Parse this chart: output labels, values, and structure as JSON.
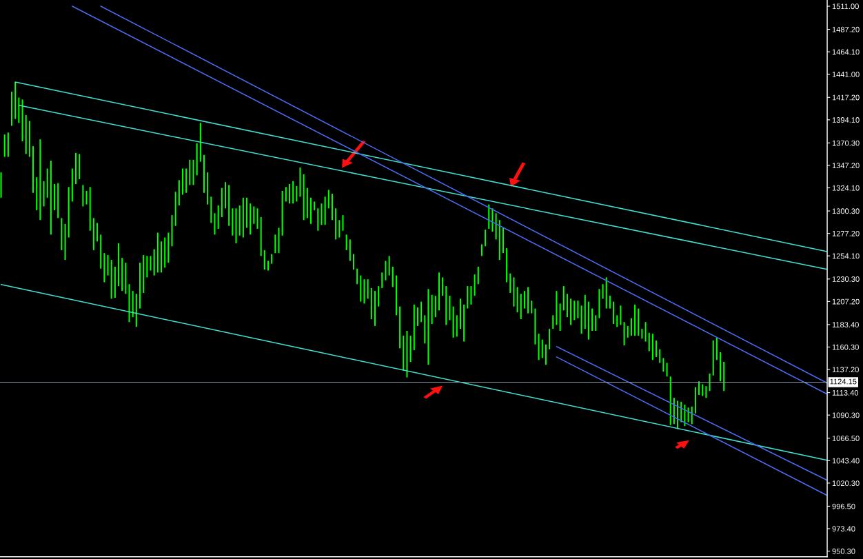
{
  "chart_data": {
    "type": "bar",
    "categories": [
      null,
      null,
      null,
      null,
      null,
      null,
      null,
      null,
      null,
      null,
      null,
      null,
      null,
      null,
      null,
      null,
      null,
      null,
      null,
      null,
      null,
      null,
      null,
      null,
      null,
      null,
      null,
      null,
      null,
      null,
      null,
      null,
      null,
      null,
      null,
      null,
      null,
      null,
      null,
      null,
      null,
      null,
      null,
      null,
      null,
      null,
      null,
      null,
      null,
      null,
      null,
      null,
      null,
      null,
      null,
      null,
      null,
      null,
      null,
      null,
      null,
      null,
      null,
      null,
      null,
      null,
      null,
      null,
      null,
      null,
      null,
      null,
      null,
      null,
      null,
      null,
      null,
      null,
      null,
      null,
      null,
      null,
      null,
      null,
      null,
      null,
      null,
      null,
      null,
      null,
      null,
      null,
      null,
      null,
      null,
      null,
      null,
      null,
      null,
      null,
      null,
      null,
      null,
      null,
      null,
      null,
      null,
      null,
      null,
      null,
      null,
      null,
      null,
      null,
      null,
      null,
      null,
      null,
      null,
      null,
      null,
      null,
      null,
      null,
      null,
      null,
      null,
      null,
      null,
      null,
      null,
      null,
      null,
      null,
      null,
      null,
      null,
      null,
      null,
      null,
      null,
      null,
      null,
      null,
      null,
      null,
      null,
      null,
      null,
      null,
      null,
      null,
      null,
      null,
      null,
      null,
      null,
      null,
      null,
      null,
      null,
      null,
      null,
      null,
      null,
      null,
      null,
      null,
      null,
      null,
      null,
      null,
      null,
      null,
      null,
      null,
      null,
      null,
      null,
      null,
      null,
      null,
      null,
      null,
      null,
      null,
      null,
      null,
      null,
      null,
      null,
      null,
      null,
      null,
      null,
      null,
      null,
      null,
      null,
      null,
      null,
      null,
      null,
      null,
      null,
      null,
      null,
      null,
      null,
      null,
      null,
      null,
      null,
      null,
      null,
      null,
      null,
      null,
      null,
      null,
      null,
      null,
      null,
      null,
      null,
      null,
      null,
      null,
      null,
      null,
      null,
      null,
      null
    ],
    "series": [
      {
        "color": "#00ff00",
        "base": [
          1314,
          1356,
          1356,
          1388,
          1395,
          1391,
          1372,
          1359,
          1356,
          1319,
          1301,
          1291,
          1305,
          1314,
          1276,
          1301,
          1293,
          1260,
          1250,
          1273,
          1310,
          1328,
          1333,
          1305,
          1307,
          1280,
          1260,
          1269,
          1241,
          1227,
          1234,
          1210,
          1211,
          1223,
          1218,
          1215,
          1186,
          1191,
          1181,
          1200,
          1216,
          1232,
          1239,
          1234,
          1237,
          1237,
          1242,
          1247,
          1264,
          1285,
          1306,
          1317,
          1319,
          1327,
          1327,
          1337,
          1351,
          1319,
          1307,
          1288,
          1276,
          1282,
          1294,
          1303,
          1285,
          1275,
          1267,
          1275,
          1273,
          1283,
          1276,
          1287,
          1282,
          1254,
          1240,
          1239,
          1246,
          1257,
          1257,
          1275,
          1310,
          1308,
          1308,
          1310,
          1315,
          1291,
          1293,
          1287,
          1301,
          1280,
          1286,
          1286,
          1303,
          1291,
          1271,
          1273,
          1280,
          1260,
          1249,
          1240,
          1225,
          1207,
          1205,
          1210,
          1189,
          1182,
          1202,
          1221,
          1229,
          1234,
          1222,
          1193,
          1159,
          1136,
          1129,
          1145,
          1157,
          1182,
          1186,
          1164,
          1142,
          1184,
          1191,
          1198,
          1213,
          1183,
          1188,
          1170,
          1171,
          1179,
          1166,
          1200,
          1204,
          1213,
          1225,
          1254,
          1264,
          1282,
          1279,
          1271,
          1250,
          1257,
          1227,
          1216,
          1202,
          1196,
          1189,
          1200,
          1195,
          1195,
          1163,
          1147,
          1149,
          1142,
          1158,
          1179,
          1183,
          1177,
          1198,
          1191,
          1183,
          1188,
          1190,
          1174,
          1179,
          1168,
          1177,
          1177,
          1190,
          1210,
          1200,
          1200,
          1184,
          1181,
          1183,
          1162,
          1170,
          1172,
          1172,
          1172,
          1169,
          1166,
          1156,
          1147,
          1150,
          1144,
          1135,
          1130,
          1080,
          1081,
          1076,
          1083,
          1079,
          1083,
          1081,
          1092,
          1111,
          1110,
          1108,
          1115,
          1131,
          1147,
          1125,
          1115,
          null,
          null,
          null,
          null,
          null,
          null,
          null,
          null,
          null,
          null,
          null,
          null,
          null,
          null,
          null,
          null,
          null,
          null,
          null,
          null,
          null,
          null,
          null,
          null,
          null,
          null,
          null,
          null,
          null
        ],
        "values": [
          26,
          23,
          25,
          35,
          38,
          26,
          43,
          40,
          37,
          48,
          34,
          83,
          26,
          30,
          76,
          27,
          36,
          33,
          37,
          52,
          34,
          32,
          26,
          22,
          14,
          45,
          33,
          19,
          35,
          30,
          21,
          40,
          32,
          44,
          34,
          32,
          39,
          27,
          34,
          47,
          39,
          22,
          15,
          27,
          41,
          32,
          31,
          31,
          32,
          35,
          26,
          27,
          25,
          26,
          26,
          33,
          40,
          39,
          33,
          27,
          22,
          24,
          30,
          27,
          42,
          28,
          36,
          31,
          41,
          31,
          32,
          18,
          21,
          40,
          20,
          10,
          10,
          19,
          26,
          46,
          15,
          20,
          23,
          16,
          30,
          47,
          31,
          27,
          9,
          23,
          22,
          29,
          19,
          27,
          32,
          18,
          16,
          16,
          22,
          16,
          16,
          27,
          25,
          20,
          32,
          36,
          21,
          16,
          20,
          20,
          21,
          41,
          43,
          36,
          48,
          27,
          47,
          19,
          21,
          29,
          78,
          30,
          22,
          39,
          19,
          40,
          25,
          32,
          22,
          31,
          38,
          23,
          19,
          22,
          18,
          12,
          17,
          25,
          24,
          27,
          41,
          26,
          35,
          20,
          30,
          26,
          26,
          18,
          27,
          13,
          37,
          27,
          19,
          21,
          21,
          14,
          35,
          28,
          25,
          24,
          27,
          20,
          18,
          29,
          35,
          39,
          23,
          16,
          30,
          15,
          32,
          13,
          23,
          12,
          20,
          24,
          12,
          18,
          32,
          28,
          10,
          20,
          19,
          27,
          17,
          14,
          14,
          14,
          50,
          27,
          29,
          21,
          22,
          15,
          18,
          27,
          14,
          12,
          12,
          18,
          36,
          23,
          30,
          30,
          null,
          null,
          null,
          null,
          null,
          null,
          null,
          null,
          null,
          null,
          null,
          null,
          null,
          null,
          null,
          null,
          null,
          null,
          null,
          null,
          null,
          null,
          null,
          null,
          null,
          null,
          null,
          null,
          null
        ]
      },
      {
        "type": "line",
        "color": "#40e0d0",
        "values": [
          null,
          null,
          null,
          null,
          1433.0,
          null,
          null,
          null,
          null,
          null,
          null,
          null,
          null,
          null,
          null,
          null,
          null,
          null,
          null,
          null,
          null,
          null,
          null,
          null,
          null,
          null,
          null,
          null,
          null,
          null,
          null,
          null,
          null,
          null,
          null,
          null,
          null,
          null,
          null,
          null,
          null,
          null,
          null,
          null,
          null,
          null,
          null,
          null,
          null,
          null,
          null,
          null,
          null,
          null,
          null,
          null,
          null,
          null,
          null,
          null,
          null,
          null,
          null,
          null,
          null,
          null,
          null,
          null,
          null,
          null,
          null,
          null,
          null,
          null,
          null,
          null,
          null,
          null,
          null,
          null,
          null,
          null,
          null,
          null,
          null,
          null,
          null,
          null,
          null,
          null,
          null,
          null,
          null,
          null,
          null,
          null,
          null,
          null,
          null,
          null,
          null,
          null,
          null,
          null,
          null,
          null,
          null,
          null,
          null,
          null,
          null,
          null,
          null,
          null,
          null,
          null,
          null,
          null,
          null,
          null,
          null,
          null,
          null,
          null,
          null,
          null,
          null,
          null,
          null,
          null,
          null,
          null,
          null,
          null,
          null,
          null,
          null,
          null,
          null,
          null,
          null,
          null,
          null,
          null,
          null,
          null,
          null,
          null,
          null,
          null,
          null,
          null,
          null,
          null,
          null,
          null,
          null,
          null,
          null,
          null,
          null,
          null,
          null,
          null,
          null,
          null,
          null,
          null,
          null,
          null,
          null,
          null,
          null,
          null,
          null,
          null,
          null,
          null,
          null,
          null,
          null,
          null,
          null,
          null,
          null,
          null,
          null,
          null,
          null,
          null,
          null,
          null,
          null,
          null,
          null,
          null,
          null,
          null,
          null,
          null,
          null,
          null,
          null,
          null,
          null,
          null,
          null,
          null,
          null,
          null,
          null,
          null,
          null,
          null,
          null,
          null,
          null,
          null,
          null,
          null,
          null,
          null,
          null,
          null,
          null,
          null,
          null,
          null,
          null,
          null,
          null,
          null,
          1258.6
        ]
      },
      {
        "type": "line",
        "color": "#40e0d0",
        "values": [
          null,
          null,
          null,
          null,
          null,
          1409.0,
          null,
          null,
          null,
          null,
          null,
          null,
          null,
          null,
          null,
          null,
          null,
          null,
          null,
          null,
          null,
          null,
          null,
          null,
          null,
          null,
          null,
          null,
          null,
          null,
          null,
          null,
          null,
          null,
          null,
          null,
          null,
          null,
          null,
          null,
          null,
          null,
          null,
          null,
          null,
          null,
          null,
          null,
          null,
          null,
          null,
          null,
          null,
          null,
          null,
          null,
          null,
          null,
          null,
          null,
          null,
          null,
          null,
          null,
          null,
          null,
          null,
          null,
          null,
          null,
          null,
          null,
          null,
          null,
          null,
          null,
          null,
          null,
          null,
          null,
          null,
          null,
          null,
          null,
          null,
          null,
          null,
          null,
          null,
          null,
          null,
          null,
          null,
          null,
          null,
          null,
          null,
          null,
          null,
          null,
          null,
          null,
          null,
          null,
          null,
          null,
          null,
          null,
          null,
          null,
          null,
          null,
          null,
          null,
          null,
          null,
          null,
          null,
          null,
          null,
          null,
          null,
          null,
          null,
          null,
          null,
          null,
          null,
          null,
          null,
          null,
          null,
          null,
          null,
          null,
          null,
          null,
          null,
          null,
          null,
          null,
          null,
          null,
          null,
          null,
          null,
          null,
          null,
          null,
          null,
          null,
          null,
          null,
          null,
          null,
          null,
          null,
          null,
          null,
          null,
          null,
          null,
          null,
          null,
          null,
          null,
          null,
          null,
          null,
          null,
          null,
          null,
          null,
          null,
          null,
          null,
          null,
          null,
          null,
          null,
          null,
          null,
          null,
          null,
          null,
          null,
          null,
          null,
          null,
          null,
          null,
          null,
          null,
          null,
          null,
          null,
          null,
          null,
          null,
          null,
          null,
          null,
          null,
          null,
          null,
          null,
          null,
          null,
          null,
          null,
          null,
          null,
          null,
          null,
          null,
          null,
          null,
          null,
          null,
          null,
          null,
          null,
          null,
          null,
          null,
          null,
          null,
          null,
          null,
          null,
          null,
          null,
          1240.2
        ]
      },
      {
        "type": "line",
        "color": "#40e0d0",
        "values": [
          1224.6,
          null,
          null,
          null,
          null,
          null,
          null,
          null,
          null,
          null,
          null,
          null,
          null,
          null,
          null,
          null,
          null,
          null,
          null,
          null,
          null,
          null,
          null,
          null,
          null,
          null,
          null,
          null,
          null,
          null,
          null,
          null,
          null,
          null,
          null,
          null,
          null,
          null,
          null,
          null,
          null,
          null,
          null,
          null,
          null,
          null,
          null,
          null,
          null,
          null,
          null,
          null,
          null,
          null,
          null,
          null,
          null,
          null,
          null,
          null,
          null,
          null,
          null,
          null,
          null,
          null,
          null,
          null,
          null,
          null,
          null,
          null,
          null,
          null,
          null,
          null,
          null,
          null,
          null,
          null,
          null,
          null,
          null,
          null,
          null,
          null,
          null,
          null,
          null,
          null,
          null,
          null,
          null,
          null,
          null,
          null,
          null,
          null,
          null,
          null,
          null,
          null,
          null,
          null,
          null,
          null,
          null,
          null,
          null,
          null,
          null,
          null,
          null,
          null,
          null,
          null,
          null,
          null,
          null,
          null,
          null,
          null,
          null,
          null,
          null,
          null,
          null,
          null,
          null,
          null,
          null,
          null,
          null,
          null,
          null,
          null,
          null,
          null,
          null,
          null,
          null,
          null,
          null,
          null,
          null,
          null,
          null,
          null,
          null,
          null,
          null,
          null,
          null,
          null,
          null,
          null,
          null,
          null,
          null,
          null,
          null,
          null,
          null,
          null,
          null,
          null,
          null,
          null,
          null,
          null,
          null,
          null,
          null,
          null,
          null,
          null,
          null,
          null,
          null,
          null,
          null,
          null,
          null,
          null,
          null,
          null,
          null,
          null,
          null,
          null,
          null,
          null,
          null,
          null,
          null,
          null,
          null,
          null,
          null,
          null,
          null,
          null,
          null,
          null,
          null,
          null,
          null,
          null,
          null,
          null,
          null,
          null,
          null,
          null,
          null,
          null,
          null,
          null,
          null,
          null,
          null,
          null,
          null,
          null,
          null,
          null,
          null,
          null,
          null,
          null,
          null,
          null,
          1043.8
        ]
      },
      {
        "type": "line",
        "color": "#4a6cf0",
        "values": [
          null,
          null,
          null,
          null,
          null,
          null,
          null,
          null,
          null,
          null,
          null,
          null,
          null,
          null,
          null,
          null,
          null,
          null,
          null,
          null,
          1511.0,
          null,
          null,
          null,
          null,
          null,
          null,
          null,
          null,
          null,
          null,
          null,
          null,
          null,
          null,
          null,
          null,
          null,
          null,
          null,
          null,
          null,
          null,
          null,
          null,
          null,
          null,
          null,
          null,
          null,
          null,
          null,
          null,
          null,
          null,
          null,
          null,
          null,
          null,
          null,
          null,
          null,
          null,
          null,
          null,
          null,
          null,
          null,
          null,
          null,
          null,
          null,
          null,
          null,
          null,
          null,
          null,
          null,
          null,
          null,
          null,
          null,
          null,
          null,
          null,
          null,
          null,
          null,
          null,
          null,
          null,
          null,
          null,
          null,
          null,
          null,
          null,
          null,
          null,
          null,
          null,
          null,
          null,
          null,
          null,
          null,
          null,
          null,
          null,
          null,
          null,
          null,
          null,
          null,
          null,
          null,
          null,
          null,
          null,
          null,
          null,
          null,
          null,
          null,
          null,
          null,
          null,
          null,
          null,
          null,
          null,
          null,
          null,
          null,
          null,
          null,
          null,
          null,
          null,
          null,
          null,
          null,
          null,
          null,
          null,
          null,
          null,
          null,
          null,
          null,
          null,
          null,
          null,
          null,
          null,
          null,
          null,
          null,
          null,
          null,
          null,
          null,
          null,
          null,
          null,
          null,
          null,
          null,
          null,
          null,
          null,
          null,
          null,
          null,
          null,
          null,
          null,
          null,
          null,
          null,
          null,
          null,
          null,
          null,
          null,
          null,
          null,
          null,
          null,
          null,
          null,
          null,
          null,
          null,
          null,
          null,
          null,
          null,
          null,
          null,
          null,
          null,
          null,
          null,
          null,
          null,
          null,
          null,
          null,
          null,
          null,
          null,
          null,
          null,
          null,
          null,
          null,
          null,
          null,
          null,
          null,
          null,
          null,
          null,
          null,
          null,
          null,
          null,
          null,
          null,
          null,
          null,
          1111.9
        ]
      },
      {
        "type": "line",
        "color": "#4a6cf0",
        "values": [
          null,
          null,
          null,
          null,
          null,
          null,
          null,
          null,
          null,
          null,
          null,
          null,
          null,
          null,
          null,
          null,
          null,
          null,
          null,
          null,
          null,
          null,
          null,
          null,
          null,
          null,
          null,
          null,
          1511.0,
          null,
          null,
          null,
          null,
          null,
          null,
          null,
          null,
          null,
          null,
          null,
          null,
          null,
          null,
          null,
          null,
          null,
          null,
          null,
          null,
          null,
          null,
          null,
          null,
          null,
          null,
          null,
          null,
          null,
          null,
          null,
          null,
          null,
          null,
          null,
          null,
          null,
          null,
          null,
          null,
          null,
          null,
          null,
          null,
          null,
          null,
          null,
          null,
          null,
          null,
          null,
          null,
          null,
          null,
          null,
          null,
          null,
          null,
          null,
          null,
          null,
          null,
          null,
          null,
          null,
          null,
          null,
          null,
          null,
          null,
          null,
          null,
          null,
          null,
          null,
          null,
          null,
          null,
          null,
          null,
          null,
          null,
          null,
          null,
          null,
          null,
          null,
          null,
          null,
          null,
          null,
          null,
          null,
          null,
          null,
          null,
          null,
          null,
          null,
          null,
          null,
          null,
          null,
          null,
          null,
          null,
          null,
          null,
          null,
          null,
          null,
          null,
          null,
          null,
          null,
          null,
          null,
          null,
          null,
          null,
          null,
          null,
          null,
          null,
          null,
          null,
          null,
          null,
          null,
          null,
          null,
          null,
          null,
          null,
          null,
          null,
          null,
          null,
          null,
          null,
          null,
          null,
          null,
          null,
          null,
          null,
          null,
          null,
          null,
          null,
          null,
          null,
          null,
          null,
          null,
          null,
          null,
          null,
          null,
          null,
          null,
          null,
          null,
          null,
          null,
          null,
          null,
          null,
          null,
          null,
          null,
          null,
          null,
          null,
          null,
          null,
          null,
          null,
          null,
          null,
          null,
          null,
          null,
          null,
          null,
          null,
          null,
          null,
          null,
          null,
          null,
          null,
          null,
          null,
          null,
          null,
          null,
          null,
          null,
          null,
          null,
          null,
          null,
          1123.2
        ]
      },
      {
        "type": "line",
        "color": "#4a6cf0",
        "values": [
          null,
          null,
          null,
          null,
          null,
          null,
          null,
          null,
          null,
          null,
          null,
          null,
          null,
          null,
          null,
          null,
          null,
          null,
          null,
          null,
          null,
          null,
          null,
          null,
          null,
          null,
          null,
          null,
          null,
          null,
          null,
          null,
          null,
          null,
          null,
          null,
          null,
          null,
          null,
          null,
          null,
          null,
          null,
          null,
          null,
          null,
          null,
          null,
          null,
          null,
          null,
          null,
          null,
          null,
          null,
          null,
          null,
          null,
          null,
          null,
          null,
          null,
          null,
          null,
          null,
          null,
          null,
          null,
          null,
          null,
          null,
          null,
          null,
          null,
          null,
          null,
          null,
          null,
          null,
          null,
          null,
          null,
          null,
          null,
          null,
          null,
          null,
          null,
          null,
          null,
          null,
          null,
          null,
          null,
          null,
          null,
          null,
          null,
          null,
          null,
          null,
          null,
          null,
          null,
          null,
          null,
          null,
          null,
          null,
          null,
          null,
          null,
          null,
          null,
          null,
          null,
          null,
          null,
          null,
          null,
          null,
          null,
          null,
          null,
          null,
          null,
          null,
          null,
          null,
          null,
          null,
          null,
          null,
          null,
          null,
          null,
          null,
          null,
          null,
          null,
          null,
          null,
          null,
          null,
          null,
          null,
          null,
          null,
          null,
          null,
          null,
          null,
          null,
          null,
          null,
          null,
          1160.8,
          null,
          null,
          null,
          null,
          null,
          null,
          null,
          null,
          null,
          null,
          null,
          null,
          null,
          null,
          null,
          null,
          null,
          null,
          null,
          null,
          null,
          null,
          null,
          null,
          null,
          null,
          null,
          null,
          null,
          null,
          null,
          null,
          null,
          null,
          null,
          null,
          null,
          null,
          null,
          null,
          null,
          null,
          null,
          null,
          null,
          null,
          null,
          null,
          null,
          null,
          null,
          null,
          null,
          null,
          null,
          null,
          null,
          null,
          null,
          null,
          null,
          null,
          null,
          null,
          null,
          null,
          null,
          null,
          null,
          null,
          null,
          null,
          null,
          null,
          null,
          1023.2
        ]
      },
      {
        "type": "line",
        "color": "#4a6cf0",
        "values": [
          null,
          null,
          null,
          null,
          null,
          null,
          null,
          null,
          null,
          null,
          null,
          null,
          null,
          null,
          null,
          null,
          null,
          null,
          null,
          null,
          null,
          null,
          null,
          null,
          null,
          null,
          null,
          null,
          null,
          null,
          null,
          null,
          null,
          null,
          null,
          null,
          null,
          null,
          null,
          null,
          null,
          null,
          null,
          null,
          null,
          null,
          null,
          null,
          null,
          null,
          null,
          null,
          null,
          null,
          null,
          null,
          null,
          null,
          null,
          null,
          null,
          null,
          null,
          null,
          null,
          null,
          null,
          null,
          null,
          null,
          null,
          null,
          null,
          null,
          null,
          null,
          null,
          null,
          null,
          null,
          null,
          null,
          null,
          null,
          null,
          null,
          null,
          null,
          null,
          null,
          null,
          null,
          null,
          null,
          null,
          null,
          null,
          null,
          null,
          null,
          null,
          null,
          null,
          null,
          null,
          null,
          null,
          null,
          null,
          null,
          null,
          null,
          null,
          null,
          null,
          null,
          null,
          null,
          null,
          null,
          null,
          null,
          null,
          null,
          null,
          null,
          null,
          null,
          null,
          null,
          null,
          null,
          null,
          null,
          null,
          null,
          null,
          null,
          null,
          null,
          null,
          null,
          null,
          null,
          null,
          null,
          null,
          null,
          null,
          null,
          null,
          null,
          null,
          null,
          null,
          null,
          1150.1,
          null,
          null,
          null,
          null,
          null,
          null,
          null,
          null,
          null,
          null,
          null,
          null,
          null,
          null,
          null,
          null,
          null,
          null,
          null,
          null,
          null,
          null,
          null,
          null,
          null,
          null,
          null,
          null,
          null,
          null,
          null,
          null,
          null,
          null,
          null,
          null,
          null,
          null,
          null,
          null,
          null,
          null,
          null,
          null,
          null,
          null,
          null,
          null,
          null,
          null,
          null,
          null,
          null,
          null,
          null,
          null,
          null,
          null,
          null,
          null,
          null,
          null,
          null,
          null,
          null,
          null,
          null,
          null,
          null,
          null,
          null,
          null,
          null,
          null,
          null,
          1007.6
        ]
      }
    ],
    "ylim": [
      944.5,
      1517.4
    ],
    "yticks": [
      {
        "value": 1511.0,
        "label": "1511.00"
      },
      {
        "value": 1487.2,
        "label": "1487.20"
      },
      {
        "value": 1464.1,
        "label": "1464.10"
      },
      {
        "value": 1441.0,
        "label": "1441.00"
      },
      {
        "value": 1417.2,
        "label": "1417.20"
      },
      {
        "value": 1394.1,
        "label": "1394.10"
      },
      {
        "value": 1370.3,
        "label": "1370.30"
      },
      {
        "value": 1347.2,
        "label": "1347.20"
      },
      {
        "value": 1324.1,
        "label": "1324.10"
      },
      {
        "value": 1300.3,
        "label": "1300.30"
      },
      {
        "value": 1277.2,
        "label": "1277.20"
      },
      {
        "value": 1254.1,
        "label": "1254.10"
      },
      {
        "value": 1230.3,
        "label": "1230.30"
      },
      {
        "value": 1207.2,
        "label": "1207.20"
      },
      {
        "value": 1183.4,
        "label": "1183.40"
      },
      {
        "value": 1160.3,
        "label": "1160.30"
      },
      {
        "value": 1137.2,
        "label": "1137.20"
      },
      {
        "value": 1113.4,
        "label": "1113.40"
      },
      {
        "value": 1090.3,
        "label": "1090.30"
      },
      {
        "value": 1066.5,
        "label": "1066.50"
      },
      {
        "value": 1043.4,
        "label": "1043.40"
      },
      {
        "value": 1020.3,
        "label": "1020.30"
      },
      {
        "value": 996.5,
        "label": "996.50"
      },
      {
        "value": 973.4,
        "label": "973.40"
      },
      {
        "value": 950.3,
        "label": "950.30"
      }
    ],
    "tick_labels": "y",
    "ref_lines": [
      {
        "axis": "y",
        "value": 1124.15,
        "label": "1124.15",
        "color": "#8c9aa8"
      }
    ]
  }
}
